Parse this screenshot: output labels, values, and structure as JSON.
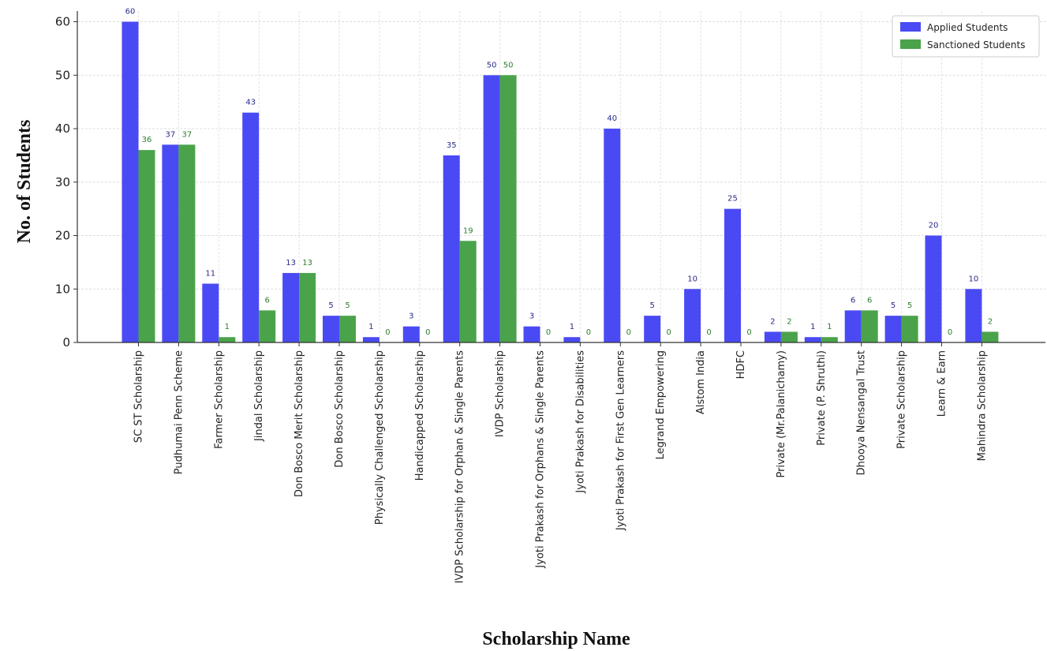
{
  "chart_data": {
    "type": "bar",
    "title": "",
    "xlabel": "Scholarship Name",
    "ylabel": "No. of Students",
    "ylim": [
      0,
      62
    ],
    "yticks": [
      0,
      10,
      20,
      30,
      40,
      50,
      60
    ],
    "grid": true,
    "legend_position": "top-right",
    "categories": [
      "SC ST Scholarship",
      "Pudhumai Penn Scheme",
      "Farmer Scholarship",
      "Jindal Scholarship",
      "Don Bosco Merit Scholarship",
      "Don Bosco Scholarship",
      "Physically Challenged Scholarship",
      "Handicapped Scholarship",
      "IVDP Scholarship for Orphan & Single Parents",
      "IVDP Scholarship",
      "Jyoti Prakash for Orphans & Single Parents",
      "Jyoti Prakash for Disabilities",
      "Jyoti Prakash for First Gen Learners",
      "Legrand Empowering",
      "Alstom India",
      "HDFC",
      "Private (Mr.Palanichamy)",
      "Private (P. Shruthi)",
      "Dhooya Nensangal Trust",
      "Private Scholarship",
      "Learn & Earn",
      "Mahindra Scholarship"
    ],
    "series": [
      {
        "name": "Applied Students",
        "color": "#4a4af4",
        "label_color": "#2a2a8a",
        "values": [
          60,
          37,
          11,
          43,
          13,
          5,
          1,
          3,
          35,
          50,
          3,
          1,
          40,
          5,
          10,
          25,
          2,
          1,
          6,
          5,
          20,
          10
        ]
      },
      {
        "name": "Sanctioned Students",
        "color": "#4aa34a",
        "label_color": "#2f7d2f",
        "values": [
          36,
          37,
          1,
          6,
          13,
          5,
          0,
          0,
          19,
          50,
          0,
          0,
          0,
          0,
          0,
          0,
          2,
          1,
          6,
          5,
          0,
          2
        ]
      }
    ]
  }
}
